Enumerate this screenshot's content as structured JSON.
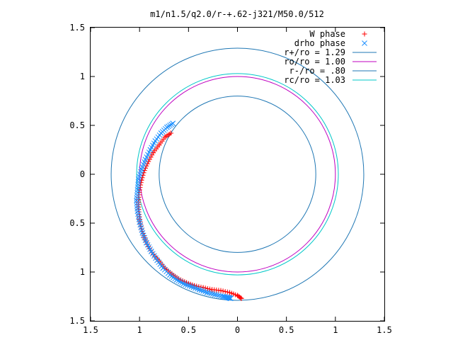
{
  "chart_data": {
    "type": "scatter",
    "title": "m1/n1.5/q2.0/r-+.62-j321/M50.0/512",
    "xlim": [
      -1.5,
      1.5
    ],
    "ylim": [
      -1.5,
      1.5
    ],
    "grid": false,
    "legend_position": "top-right",
    "x_ticks": [
      -1.5,
      -1,
      -0.5,
      0,
      0.5,
      1,
      1.5
    ],
    "x_tick_labels": [
      "1.5",
      "1",
      "0.5",
      "0",
      "0.5",
      "1",
      "1.5"
    ],
    "y_ticks": [
      1.5,
      1,
      0.5,
      0,
      -0.5,
      -1,
      -1.5
    ],
    "y_tick_labels": [
      "1.5",
      "1",
      "0.5",
      "0",
      "0.5",
      "1",
      "1.5"
    ],
    "series": [
      {
        "name": "W phase",
        "kind": "points",
        "marker": "plus",
        "color": "#ff0000",
        "x": [
          -0.68,
          -0.74,
          -0.8,
          -0.86,
          -0.91,
          -0.95,
          -0.98,
          -1.0,
          -1.01,
          -1.01,
          -1.0,
          -0.98,
          -0.95,
          -0.91,
          -0.86,
          -0.8,
          -0.74,
          -0.67,
          -0.6,
          -0.52,
          -0.44,
          -0.35,
          -0.26,
          -0.17,
          -0.08,
          0.0,
          0.04
        ],
        "y": [
          0.42,
          0.38,
          0.3,
          0.22,
          0.13,
          0.04,
          -0.06,
          -0.16,
          -0.26,
          -0.36,
          -0.46,
          -0.56,
          -0.65,
          -0.74,
          -0.82,
          -0.89,
          -0.96,
          -1.02,
          -1.07,
          -1.11,
          -1.14,
          -1.16,
          -1.18,
          -1.19,
          -1.21,
          -1.24,
          -1.27
        ]
      },
      {
        "name": "drho phase",
        "kind": "points",
        "marker": "x",
        "color": "#1e90ff",
        "x": [
          -0.66,
          -0.72,
          -0.78,
          -0.84,
          -0.89,
          -0.94,
          -0.98,
          -1.01,
          -1.02,
          -1.03,
          -1.02,
          -1.0,
          -0.97,
          -0.93,
          -0.88,
          -0.82,
          -0.76,
          -0.69,
          -0.62,
          -0.55,
          -0.47,
          -0.39,
          -0.31,
          -0.23,
          -0.15,
          -0.1,
          -0.07
        ],
        "y": [
          0.52,
          0.48,
          0.42,
          0.34,
          0.25,
          0.15,
          0.05,
          -0.05,
          -0.16,
          -0.27,
          -0.38,
          -0.49,
          -0.6,
          -0.7,
          -0.79,
          -0.88,
          -0.96,
          -1.03,
          -1.08,
          -1.12,
          -1.15,
          -1.18,
          -1.21,
          -1.23,
          -1.25,
          -1.26,
          -1.27
        ]
      },
      {
        "name": "r+/ro = 1.29",
        "kind": "circle",
        "r": 1.29,
        "color": "#1f77b4"
      },
      {
        "name": "ro/ro = 1.00",
        "kind": "circle",
        "r": 1.0,
        "color": "#c000c0"
      },
      {
        "name": "r-/ro = .80",
        "kind": "circle",
        "r": 0.8,
        "color": "#1f77b4"
      },
      {
        "name": "rc/ro = 1.03",
        "kind": "circle",
        "r": 1.03,
        "color": "#00c8c8"
      }
    ]
  }
}
